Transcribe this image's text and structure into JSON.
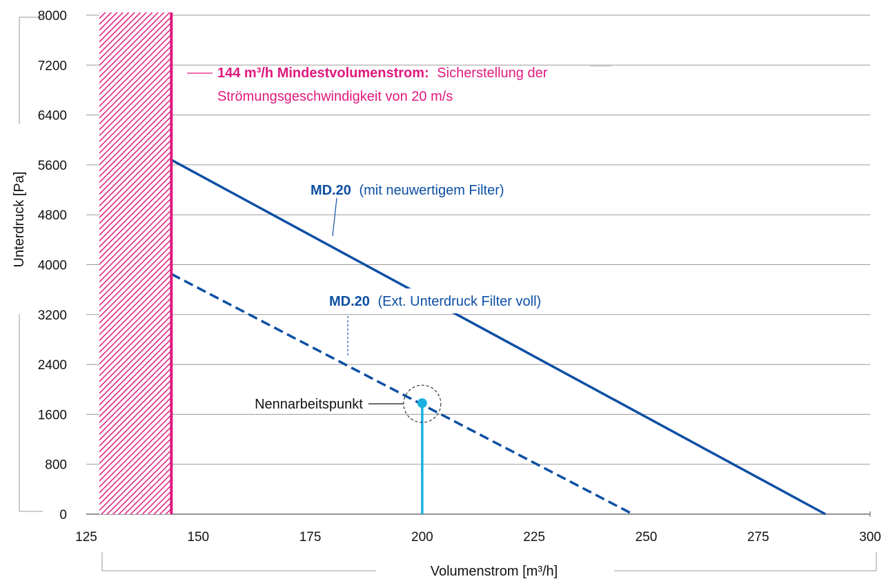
{
  "chart_data": {
    "type": "line",
    "xlabel": "Volumenstrom [m³/h]",
    "ylabel": "Unterdruck [Pa]",
    "xlim": [
      125,
      300
    ],
    "ylim": [
      0,
      8000
    ],
    "x_ticks": [
      "125",
      "150",
      "175",
      "200",
      "225",
      "250",
      "275",
      "300"
    ],
    "y_ticks": [
      "0",
      "800",
      "1600",
      "2400",
      "3200",
      "4000",
      "4800",
      "5600",
      "6400",
      "7200",
      "8000"
    ],
    "grid": true,
    "series": [
      {
        "name": "MD.20",
        "label_suffix": "(mit neuwertigem Filter)",
        "style": "solid",
        "color": "#0d4fa3",
        "x": [
          144,
          290
        ],
        "y": [
          5680,
          0
        ]
      },
      {
        "name": "MD.20",
        "label_suffix": "(Ext. Unterdruck Filter voll)",
        "style": "dashed",
        "color": "#0d4fa3",
        "x": [
          144,
          247
        ],
        "y": [
          3850,
          0
        ]
      }
    ],
    "min_flow": {
      "x": 144,
      "label_bold": "144 m³/h Mindestvolumenstrom:",
      "label_rest": "Sicherstellung der",
      "label_line2": "Strömungsgeschwindigkeit von 20 m/s",
      "color": "#e0197d"
    },
    "operating_point": {
      "x": 200,
      "y": 1780,
      "label": "Nennarbeitspunkt",
      "color": "#1ab0e0"
    }
  }
}
